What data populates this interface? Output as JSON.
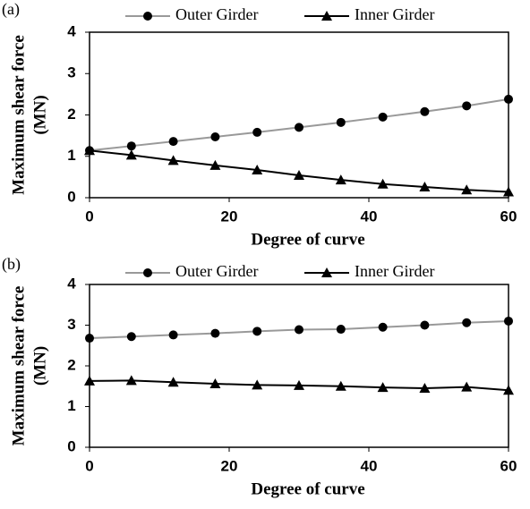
{
  "chart_data": [
    {
      "type": "line",
      "panel": "(a)",
      "xlabel": "Degree of curve",
      "ylabel_lines": [
        "Maximum shear force",
        "(MN)"
      ],
      "x": [
        0,
        6,
        12,
        18,
        24,
        30,
        36,
        42,
        48,
        54,
        60
      ],
      "series": [
        {
          "name": "Outer Girder",
          "color": "#999999",
          "marker": "circle",
          "values": [
            1.14,
            1.25,
            1.36,
            1.47,
            1.58,
            1.7,
            1.82,
            1.95,
            2.08,
            2.22,
            2.38
          ]
        },
        {
          "name": "Inner Girder",
          "color": "#000000",
          "marker": "triangle",
          "values": [
            1.14,
            1.03,
            0.9,
            0.78,
            0.67,
            0.54,
            0.43,
            0.33,
            0.26,
            0.19,
            0.14
          ]
        }
      ],
      "xlim": [
        0,
        60
      ],
      "xticks": [
        0,
        20,
        40,
        60
      ],
      "ylim": [
        0,
        4
      ],
      "yticks": [
        0,
        1,
        2,
        3,
        4
      ]
    },
    {
      "type": "line",
      "panel": "(b)",
      "xlabel": "Degree of curve",
      "ylabel_lines": [
        "Maximum shear force",
        "(MN)"
      ],
      "x": [
        0,
        6,
        12,
        18,
        24,
        30,
        36,
        42,
        48,
        54,
        60
      ],
      "series": [
        {
          "name": "Outer Girder",
          "color": "#999999",
          "marker": "circle",
          "values": [
            2.68,
            2.72,
            2.76,
            2.8,
            2.85,
            2.89,
            2.9,
            2.95,
            3.0,
            3.06,
            3.1
          ]
        },
        {
          "name": "Inner Girder",
          "color": "#000000",
          "marker": "triangle",
          "values": [
            1.63,
            1.64,
            1.6,
            1.56,
            1.53,
            1.52,
            1.5,
            1.47,
            1.45,
            1.48,
            1.4
          ]
        }
      ],
      "xlim": [
        0,
        60
      ],
      "xticks": [
        0,
        20,
        40,
        60
      ],
      "ylim": [
        0,
        4
      ],
      "yticks": [
        0,
        1,
        2,
        3,
        4
      ]
    }
  ]
}
